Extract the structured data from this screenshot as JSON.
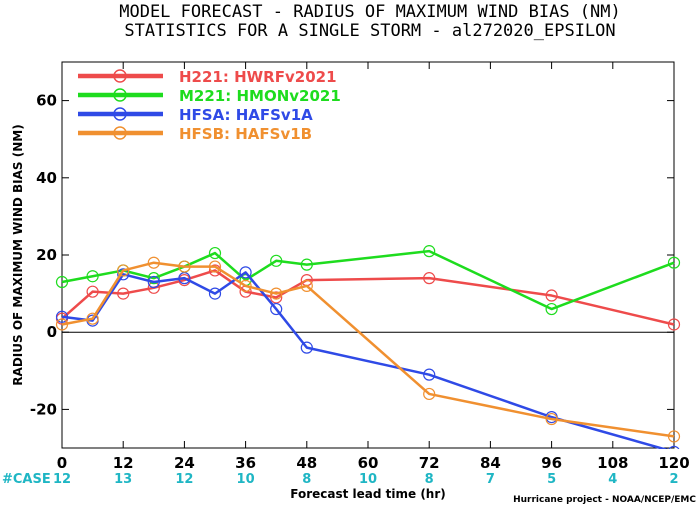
{
  "chart_data": {
    "type": "line",
    "title": "MODEL FORECAST - RADIUS OF MAXIMUM WIND BIAS (NM)",
    "subtitle": "STATISTICS FOR A SINGLE STORM - al272020_EPSILON",
    "xlabel": "Forecast lead time (hr)",
    "ylabel": "RADIUS OF MAXIMUM WIND BIAS (NM)",
    "xlim": [
      0,
      120
    ],
    "ylim": [
      -30,
      70
    ],
    "xticks": [
      "0",
      "12",
      "24",
      "36",
      "48",
      "60",
      "72",
      "84",
      "96",
      "108",
      "120"
    ],
    "yticks": [
      "-20",
      "0",
      "20",
      "40",
      "60"
    ],
    "legend": "top-left",
    "grid": false,
    "series": [
      {
        "name": "H221: HWRFv2021",
        "color": "#ee4b4b",
        "x": [
          0,
          6,
          12,
          18,
          24,
          30,
          36,
          42,
          48,
          72,
          96,
          120
        ],
        "y": [
          3.5,
          10.5,
          10,
          11.5,
          13.5,
          16,
          10.5,
          9,
          13.5,
          14,
          9.5,
          2
        ]
      },
      {
        "name": "M221: HMONv2021",
        "color": "#1edc1e",
        "x": [
          0,
          6,
          12,
          18,
          24,
          30,
          36,
          42,
          48,
          72,
          96,
          120
        ],
        "y": [
          13,
          14.5,
          16,
          14,
          17,
          20.5,
          13.5,
          18.5,
          17.5,
          21,
          6,
          18
        ]
      },
      {
        "name": "HFSA: HAFSv1A",
        "color": "#2f4ae6",
        "x": [
          0,
          6,
          12,
          18,
          24,
          30,
          36,
          42,
          48,
          72,
          96,
          120
        ],
        "y": [
          4,
          3,
          15,
          13,
          14,
          10,
          15.5,
          6,
          -4,
          -11,
          -22,
          -31
        ]
      },
      {
        "name": "HFSB: HAFSv1B",
        "color": "#f09030",
        "x": [
          0,
          6,
          12,
          18,
          24,
          30,
          36,
          42,
          48,
          72,
          96,
          120
        ],
        "y": [
          2,
          3.5,
          16,
          18,
          17,
          17,
          12,
          10,
          12,
          -16,
          -22.5,
          -27
        ]
      }
    ],
    "case_label": "#CASE",
    "case_x": [
      "0",
      "12",
      "24",
      "36",
      "48",
      "60",
      "72",
      "84",
      "96",
      "108",
      "120"
    ],
    "case_counts": [
      "12",
      "13",
      "12",
      "10",
      "8",
      "10",
      "8",
      "7",
      "5",
      "4",
      "2"
    ],
    "credit": "Hurricane project - NOAA/NCEP/EMC",
    "colors": {
      "zero_line": "#000000",
      "case_text": "#1fb6c4"
    }
  }
}
